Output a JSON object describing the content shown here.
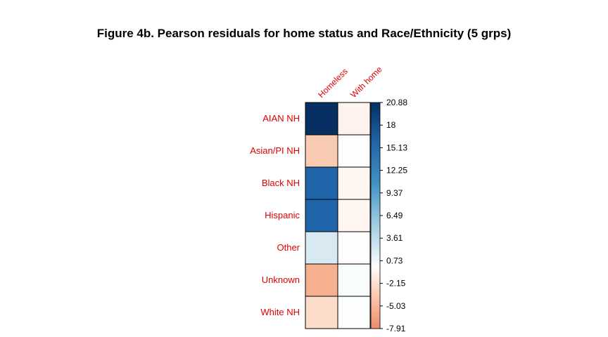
{
  "chart_data": {
    "type": "heatmap",
    "title": "Figure 4b. Pearson residuals for home status and Race/Ethnicity (5 grps)",
    "columns": [
      "Homeless",
      "With home"
    ],
    "rows": [
      "AIAN NH",
      "Asian/PI NH",
      "Black NH",
      "Hispanic",
      "Other",
      "Unknown",
      "White NH"
    ],
    "values": [
      [
        20.88,
        -0.8
      ],
      [
        -3.6,
        0.2
      ],
      [
        15.8,
        -0.6
      ],
      [
        15.9,
        -0.6
      ],
      [
        2.1,
        -0.1
      ],
      [
        -5.5,
        0.3
      ],
      [
        -2.4,
        0.1
      ]
    ],
    "colorbar": {
      "min": -7.91,
      "max": 20.88,
      "ticks": [
        "20.88",
        "18",
        "15.13",
        "12.25",
        "9.37",
        "6.49",
        "3.61",
        "0.73",
        "-2.15",
        "-5.03",
        "-7.91"
      ]
    },
    "colors": {
      "label_color": "#e00000",
      "positive_end": "#053061",
      "negative_end": "#67001f"
    }
  }
}
